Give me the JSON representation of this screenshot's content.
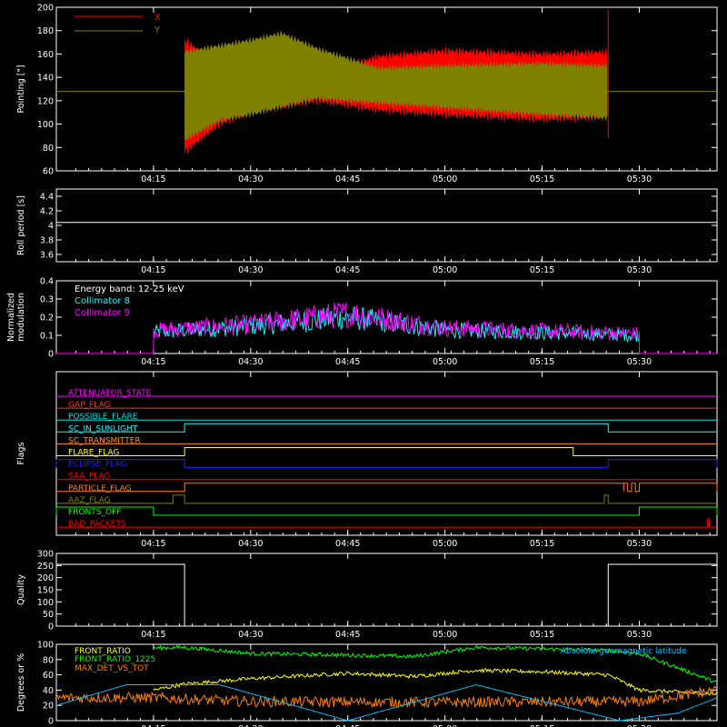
{
  "chart_data": [
    {
      "type": "line",
      "ylabel": "Pointing [\"]",
      "ylim": [
        60,
        200
      ],
      "yticks": [
        60,
        80,
        100,
        120,
        140,
        160,
        180,
        200
      ],
      "legend": "top-left",
      "series": [
        {
          "name": "X",
          "color": "#ff0000",
          "upper_envelope": [
            [
              4.33,
              172
            ],
            [
              4.42,
              150
            ],
            [
              4.5,
              130
            ],
            [
              4.67,
              142
            ],
            [
              4.83,
              158
            ],
            [
              5.0,
              163
            ],
            [
              5.25,
              160
            ],
            [
              5.42,
              162
            ]
          ],
          "lower_envelope": [
            [
              4.33,
              76
            ],
            [
              4.42,
              100
            ],
            [
              4.5,
              110
            ],
            [
              4.67,
              120
            ],
            [
              4.83,
              112
            ],
            [
              5.0,
              108
            ],
            [
              5.25,
              104
            ],
            [
              5.42,
              106
            ]
          ]
        },
        {
          "name": "Y",
          "color": "#808000",
          "upper_envelope": [
            [
              4.33,
              162
            ],
            [
              4.5,
              172
            ],
            [
              4.58,
              178
            ],
            [
              4.67,
              165
            ],
            [
              4.83,
              148
            ],
            [
              5.0,
              150
            ],
            [
              5.25,
              152
            ],
            [
              5.42,
              150
            ]
          ],
          "lower_envelope": [
            [
              4.33,
              86
            ],
            [
              4.42,
              103
            ],
            [
              4.5,
              108
            ],
            [
              4.67,
              122
            ],
            [
              4.83,
              118
            ],
            [
              5.0,
              114
            ],
            [
              5.25,
              108
            ],
            [
              5.42,
              105
            ]
          ],
          "baseline": 128
        }
      ]
    },
    {
      "type": "line",
      "ylabel": "Roll period [s]",
      "ylim": [
        3.5,
        4.5
      ],
      "yticks": [
        3.6,
        3.8,
        4.0,
        4.2,
        4.4
      ],
      "series": [
        {
          "color": "#ffffff",
          "values": [
            [
              4.0,
              4.04
            ],
            [
              5.7,
              4.04
            ]
          ]
        }
      ]
    },
    {
      "type": "line",
      "ylabel": "Normalized\nmodulation",
      "ylim": [
        0,
        0.4
      ],
      "yticks": [
        0.0,
        0.1,
        0.2,
        0.3,
        0.4
      ],
      "annotation": "Energy band: 12-25 keV",
      "series": [
        {
          "name": "Collimator 8",
          "color": "#00ffff",
          "mean": [
            [
              4.2,
              0.11
            ],
            [
              4.5,
              0.15
            ],
            [
              4.75,
              0.2
            ],
            [
              5.0,
              0.13
            ],
            [
              5.5,
              0.1
            ]
          ]
        },
        {
          "name": "Collimator 9",
          "color": "#ff00ff",
          "mean": [
            [
              4.2,
              0.12
            ],
            [
              4.5,
              0.16
            ],
            [
              4.75,
              0.22
            ],
            [
              5.0,
              0.14
            ],
            [
              5.5,
              0.11
            ]
          ]
        }
      ],
      "x_span": [
        4.25,
        5.5
      ]
    },
    {
      "type": "line",
      "ylabel": "Flags",
      "flags": [
        {
          "name": "ATTENUATOR_STATE",
          "color": "#ff00ff",
          "on": []
        },
        {
          "name": "GAP_FLAG",
          "color": "#ff3030",
          "on": []
        },
        {
          "name": "POSSIBLE_FLARE",
          "color": "#00e0e0",
          "on": []
        },
        {
          "name": "SC_IN_SUNLIGHT",
          "color": "#00ffff",
          "on": [
            [
              4.33,
              5.42
            ]
          ]
        },
        {
          "name": "SC_TRANSMITTER",
          "color": "#ff9020",
          "on": []
        },
        {
          "name": "FLARE_FLAG",
          "color": "#ffff00",
          "on": [
            [
              4.33,
              5.33
            ]
          ]
        },
        {
          "name": "ECLIPSE_FLAG",
          "color": "#2020ff",
          "on": [
            [
              4.0,
              4.33
            ],
            [
              5.42,
              5.7
            ]
          ]
        },
        {
          "name": "SAA_FLAG",
          "color": "#ff0000",
          "on": []
        },
        {
          "name": "PARTICLE_FLAG",
          "color": "#ff8000",
          "on": [
            [
              4.33,
              5.46
            ],
            [
              5.46,
              5.47
            ],
            [
              5.48,
              5.49
            ],
            [
              5.5,
              5.7
            ]
          ]
        },
        {
          "name": "AAZ_FLAG",
          "color": "#808000",
          "on": [
            [
              4.3,
              4.33
            ],
            [
              5.41,
              5.42
            ]
          ]
        },
        {
          "name": "FRONTS_OFF",
          "color": "#00ff00",
          "on": [
            [
              4.0,
              4.25
            ],
            [
              5.5,
              5.7
            ]
          ]
        },
        {
          "name": "BAD_PACKETS",
          "color": "#ff0000",
          "on": [
            [
              5.675,
              5.68
            ]
          ]
        }
      ]
    },
    {
      "type": "line",
      "ylabel": "Quality",
      "ylim": [
        0,
        300
      ],
      "yticks": [
        0,
        50,
        100,
        150,
        200,
        250,
        300
      ],
      "series": [
        {
          "color": "#ffffff",
          "values": [
            [
              4.0,
              255
            ],
            [
              4.33,
              255
            ],
            [
              4.33,
              0
            ],
            [
              5.42,
              0
            ],
            [
              5.42,
              255
            ],
            [
              5.7,
              255
            ]
          ]
        }
      ]
    },
    {
      "type": "line",
      "ylabel": "Degrees or %",
      "ylim": [
        0,
        100
      ],
      "yticks": [
        0,
        20,
        40,
        60,
        80,
        100
      ],
      "annotation": "Absolute geomagnetic latitude",
      "series": [
        {
          "name": "FRONT_RATIO",
          "color": "#ffff00",
          "values": [
            [
              4.25,
              40
            ],
            [
              4.33,
              48
            ],
            [
              4.5,
              55
            ],
            [
              4.75,
              62
            ],
            [
              4.92,
              58
            ],
            [
              5.08,
              66
            ],
            [
              5.25,
              64
            ],
            [
              5.42,
              60
            ],
            [
              5.5,
              40
            ],
            [
              5.7,
              35
            ]
          ]
        },
        {
          "name": "FRONT_RATIO_1225",
          "color": "#00ff00",
          "values": [
            [
              4.25,
              95
            ],
            [
              4.33,
              96
            ],
            [
              4.5,
              88
            ],
            [
              4.75,
              86
            ],
            [
              4.92,
              84
            ],
            [
              5.08,
              96
            ],
            [
              5.42,
              92
            ],
            [
              5.5,
              88
            ],
            [
              5.7,
              50
            ]
          ]
        },
        {
          "name": "MAX_DET_VS_TOT",
          "color": "#ff8000",
          "values": [
            [
              4.0,
              30
            ],
            [
              4.25,
              30
            ],
            [
              4.5,
              25
            ],
            [
              5.0,
              24
            ],
            [
              5.5,
              25
            ],
            [
              5.7,
              40
            ]
          ]
        },
        {
          "name": "Absolute geomagnetic latitude",
          "color": "#00c0ff",
          "values": [
            [
              4.0,
              20
            ],
            [
              4.18,
              47
            ],
            [
              4.42,
              47
            ],
            [
              4.75,
              0
            ],
            [
              5.08,
              47
            ],
            [
              5.45,
              0
            ],
            [
              5.6,
              10
            ],
            [
              5.7,
              30
            ]
          ]
        }
      ]
    }
  ],
  "xaxis": {
    "ticks": [
      "04:15",
      "04:30",
      "04:45",
      "05:00",
      "05:15",
      "05:30"
    ],
    "tick_values": [
      4.25,
      4.5,
      4.75,
      5.0,
      5.25,
      5.5
    ],
    "range": [
      4.0,
      5.7
    ]
  }
}
